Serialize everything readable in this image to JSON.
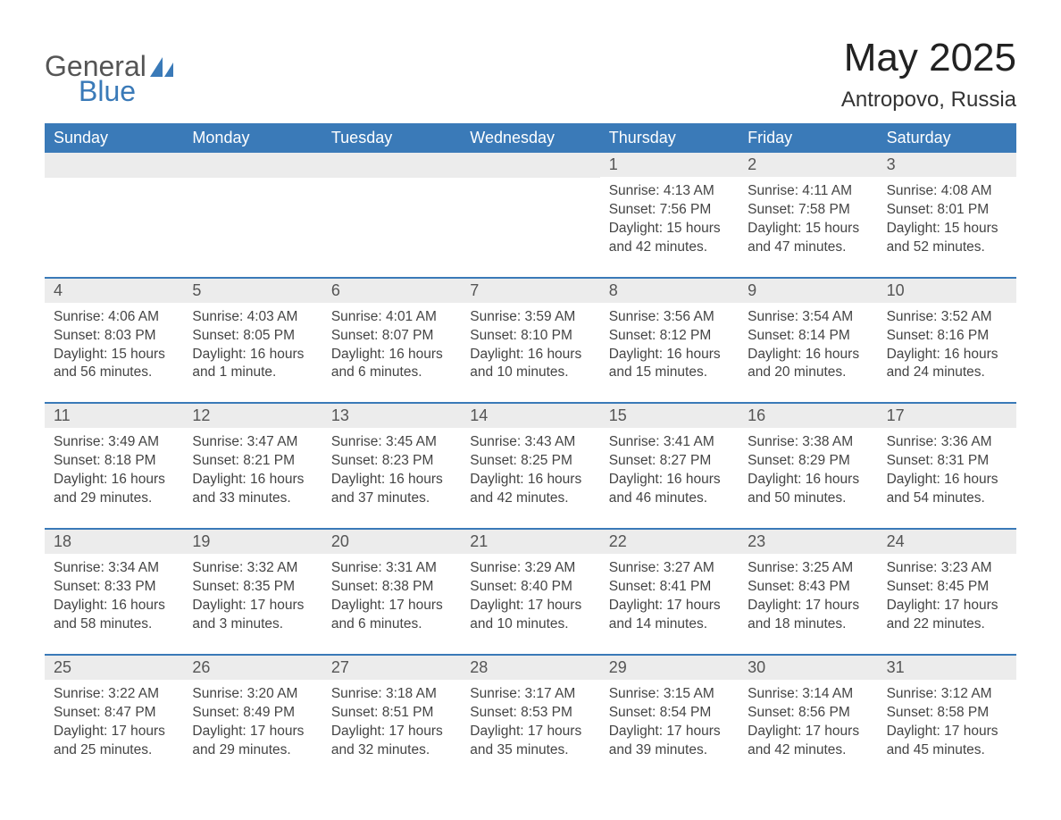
{
  "logo": {
    "general": "General",
    "blue": "Blue"
  },
  "title": "May 2025",
  "location": "Antropovo, Russia",
  "colors": {
    "header_bg": "#3a7ab8",
    "header_text": "#ffffff",
    "daynum_bg": "#ececec",
    "daynum_text": "#555555",
    "body_text": "#444444",
    "rule": "#3a7ab8"
  },
  "weekdays": [
    "Sunday",
    "Monday",
    "Tuesday",
    "Wednesday",
    "Thursday",
    "Friday",
    "Saturday"
  ],
  "weeks": [
    [
      null,
      null,
      null,
      null,
      {
        "n": "1",
        "sr": "Sunrise: 4:13 AM",
        "ss": "Sunset: 7:56 PM",
        "d1": "Daylight: 15 hours",
        "d2": "and 42 minutes."
      },
      {
        "n": "2",
        "sr": "Sunrise: 4:11 AM",
        "ss": "Sunset: 7:58 PM",
        "d1": "Daylight: 15 hours",
        "d2": "and 47 minutes."
      },
      {
        "n": "3",
        "sr": "Sunrise: 4:08 AM",
        "ss": "Sunset: 8:01 PM",
        "d1": "Daylight: 15 hours",
        "d2": "and 52 minutes."
      }
    ],
    [
      {
        "n": "4",
        "sr": "Sunrise: 4:06 AM",
        "ss": "Sunset: 8:03 PM",
        "d1": "Daylight: 15 hours",
        "d2": "and 56 minutes."
      },
      {
        "n": "5",
        "sr": "Sunrise: 4:03 AM",
        "ss": "Sunset: 8:05 PM",
        "d1": "Daylight: 16 hours",
        "d2": "and 1 minute."
      },
      {
        "n": "6",
        "sr": "Sunrise: 4:01 AM",
        "ss": "Sunset: 8:07 PM",
        "d1": "Daylight: 16 hours",
        "d2": "and 6 minutes."
      },
      {
        "n": "7",
        "sr": "Sunrise: 3:59 AM",
        "ss": "Sunset: 8:10 PM",
        "d1": "Daylight: 16 hours",
        "d2": "and 10 minutes."
      },
      {
        "n": "8",
        "sr": "Sunrise: 3:56 AM",
        "ss": "Sunset: 8:12 PM",
        "d1": "Daylight: 16 hours",
        "d2": "and 15 minutes."
      },
      {
        "n": "9",
        "sr": "Sunrise: 3:54 AM",
        "ss": "Sunset: 8:14 PM",
        "d1": "Daylight: 16 hours",
        "d2": "and 20 minutes."
      },
      {
        "n": "10",
        "sr": "Sunrise: 3:52 AM",
        "ss": "Sunset: 8:16 PM",
        "d1": "Daylight: 16 hours",
        "d2": "and 24 minutes."
      }
    ],
    [
      {
        "n": "11",
        "sr": "Sunrise: 3:49 AM",
        "ss": "Sunset: 8:18 PM",
        "d1": "Daylight: 16 hours",
        "d2": "and 29 minutes."
      },
      {
        "n": "12",
        "sr": "Sunrise: 3:47 AM",
        "ss": "Sunset: 8:21 PM",
        "d1": "Daylight: 16 hours",
        "d2": "and 33 minutes."
      },
      {
        "n": "13",
        "sr": "Sunrise: 3:45 AM",
        "ss": "Sunset: 8:23 PM",
        "d1": "Daylight: 16 hours",
        "d2": "and 37 minutes."
      },
      {
        "n": "14",
        "sr": "Sunrise: 3:43 AM",
        "ss": "Sunset: 8:25 PM",
        "d1": "Daylight: 16 hours",
        "d2": "and 42 minutes."
      },
      {
        "n": "15",
        "sr": "Sunrise: 3:41 AM",
        "ss": "Sunset: 8:27 PM",
        "d1": "Daylight: 16 hours",
        "d2": "and 46 minutes."
      },
      {
        "n": "16",
        "sr": "Sunrise: 3:38 AM",
        "ss": "Sunset: 8:29 PM",
        "d1": "Daylight: 16 hours",
        "d2": "and 50 minutes."
      },
      {
        "n": "17",
        "sr": "Sunrise: 3:36 AM",
        "ss": "Sunset: 8:31 PM",
        "d1": "Daylight: 16 hours",
        "d2": "and 54 minutes."
      }
    ],
    [
      {
        "n": "18",
        "sr": "Sunrise: 3:34 AM",
        "ss": "Sunset: 8:33 PM",
        "d1": "Daylight: 16 hours",
        "d2": "and 58 minutes."
      },
      {
        "n": "19",
        "sr": "Sunrise: 3:32 AM",
        "ss": "Sunset: 8:35 PM",
        "d1": "Daylight: 17 hours",
        "d2": "and 3 minutes."
      },
      {
        "n": "20",
        "sr": "Sunrise: 3:31 AM",
        "ss": "Sunset: 8:38 PM",
        "d1": "Daylight: 17 hours",
        "d2": "and 6 minutes."
      },
      {
        "n": "21",
        "sr": "Sunrise: 3:29 AM",
        "ss": "Sunset: 8:40 PM",
        "d1": "Daylight: 17 hours",
        "d2": "and 10 minutes."
      },
      {
        "n": "22",
        "sr": "Sunrise: 3:27 AM",
        "ss": "Sunset: 8:41 PM",
        "d1": "Daylight: 17 hours",
        "d2": "and 14 minutes."
      },
      {
        "n": "23",
        "sr": "Sunrise: 3:25 AM",
        "ss": "Sunset: 8:43 PM",
        "d1": "Daylight: 17 hours",
        "d2": "and 18 minutes."
      },
      {
        "n": "24",
        "sr": "Sunrise: 3:23 AM",
        "ss": "Sunset: 8:45 PM",
        "d1": "Daylight: 17 hours",
        "d2": "and 22 minutes."
      }
    ],
    [
      {
        "n": "25",
        "sr": "Sunrise: 3:22 AM",
        "ss": "Sunset: 8:47 PM",
        "d1": "Daylight: 17 hours",
        "d2": "and 25 minutes."
      },
      {
        "n": "26",
        "sr": "Sunrise: 3:20 AM",
        "ss": "Sunset: 8:49 PM",
        "d1": "Daylight: 17 hours",
        "d2": "and 29 minutes."
      },
      {
        "n": "27",
        "sr": "Sunrise: 3:18 AM",
        "ss": "Sunset: 8:51 PM",
        "d1": "Daylight: 17 hours",
        "d2": "and 32 minutes."
      },
      {
        "n": "28",
        "sr": "Sunrise: 3:17 AM",
        "ss": "Sunset: 8:53 PM",
        "d1": "Daylight: 17 hours",
        "d2": "and 35 minutes."
      },
      {
        "n": "29",
        "sr": "Sunrise: 3:15 AM",
        "ss": "Sunset: 8:54 PM",
        "d1": "Daylight: 17 hours",
        "d2": "and 39 minutes."
      },
      {
        "n": "30",
        "sr": "Sunrise: 3:14 AM",
        "ss": "Sunset: 8:56 PM",
        "d1": "Daylight: 17 hours",
        "d2": "and 42 minutes."
      },
      {
        "n": "31",
        "sr": "Sunrise: 3:12 AM",
        "ss": "Sunset: 8:58 PM",
        "d1": "Daylight: 17 hours",
        "d2": "and 45 minutes."
      }
    ]
  ]
}
